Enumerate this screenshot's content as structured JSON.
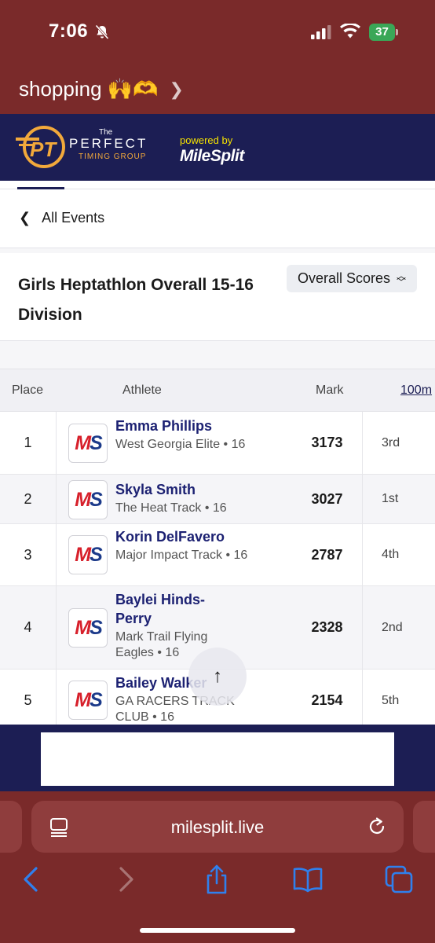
{
  "status_bar": {
    "time": "7:06",
    "battery": "37"
  },
  "app_back": {
    "label": "shopping 🙌🫶"
  },
  "header": {
    "logo_the": "The",
    "logo_perfect": "PERFECT",
    "logo_timing": "TIMING GROUP",
    "powered_by": "powered by",
    "milesplit": "MileSplit"
  },
  "nav": {
    "all_events": "All Events"
  },
  "event": {
    "title": "Girls Heptathlon Overall 15-16 Division",
    "score_select": "Overall Scores"
  },
  "table": {
    "headers": {
      "place": "Place",
      "athlete": "Athlete",
      "mark": "Mark",
      "event1": "100m"
    },
    "rows": [
      {
        "place": "1",
        "name": "Emma Phillips",
        "team": "West Georgia Elite • 16",
        "mark": "3173",
        "event1": "3rd"
      },
      {
        "place": "2",
        "name": "Skyla Smith",
        "team": "The Heat Track • 16",
        "mark": "3027",
        "event1": "1st"
      },
      {
        "place": "3",
        "name": "Korin DelFavero",
        "team": "Major Impact Track • 16",
        "mark": "2787",
        "event1": "4th"
      },
      {
        "place": "4",
        "name": "Baylei Hinds-Perry",
        "team": "Mark Trail Flying Eagles • 16",
        "mark": "2328",
        "event1": "2nd"
      },
      {
        "place": "5",
        "name": "Bailey Walker",
        "team": "GA RACERS TRACK CLUB • 16",
        "mark": "2154",
        "event1": "5th"
      }
    ]
  },
  "team_logo_text": {
    "m": "M",
    "s": "S"
  },
  "scroll_top": {
    "glyph": "↑"
  },
  "safari": {
    "url": "milesplit.live"
  },
  "colors": {
    "chrome": "#7a2a2a",
    "brand_navy": "#1c1e54",
    "ms_red": "#d7202b",
    "ms_blue": "#1c3a8a"
  }
}
